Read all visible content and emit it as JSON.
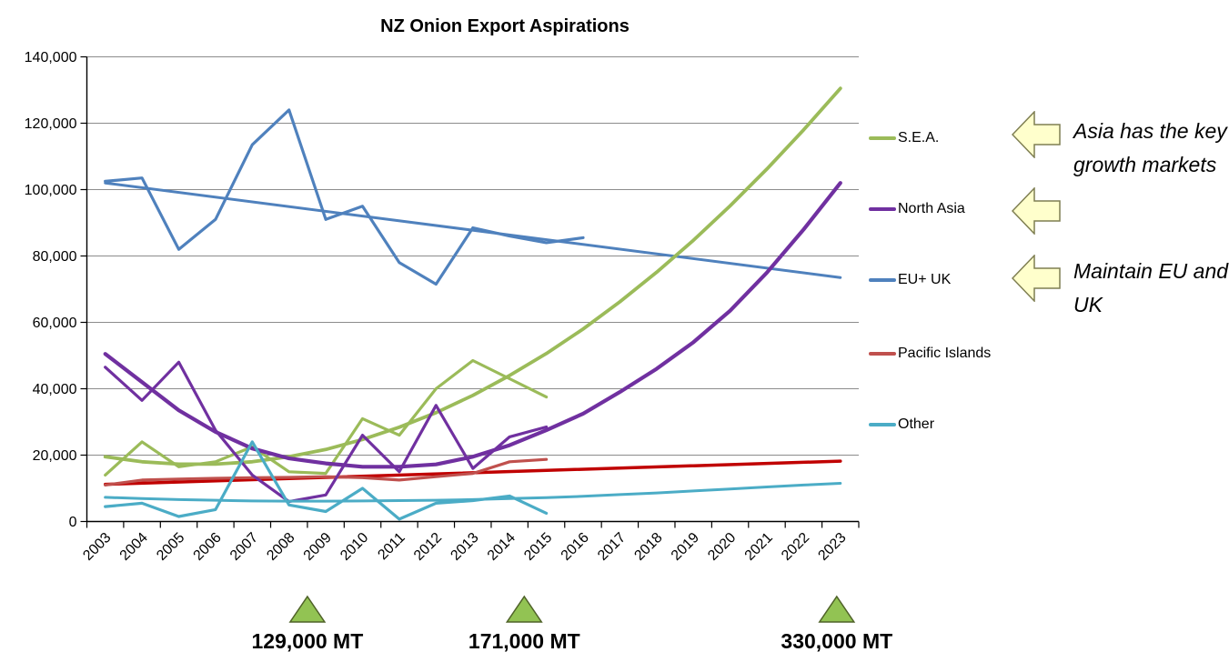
{
  "chart_data": {
    "type": "line",
    "title": "NZ Onion Export Aspirations",
    "xlabel": "",
    "ylabel": "",
    "x_categories": [
      "2003",
      "2004",
      "2005",
      "2006",
      "2007",
      "2008",
      "2009",
      "2010",
      "2011",
      "2012",
      "2013",
      "2014",
      "2015",
      "2016",
      "2017",
      "2018",
      "2019",
      "2020",
      "2021",
      "2022",
      "2023"
    ],
    "ylim": [
      0,
      140000
    ],
    "ytick_values": [
      0,
      20000,
      40000,
      60000,
      80000,
      100000,
      120000,
      140000
    ],
    "ytick_labels": [
      "0",
      "20,000",
      "40,000",
      "60,000",
      "80,000",
      "100,000",
      "120,000",
      "140,000"
    ],
    "grid": true,
    "legend_position": "right",
    "legend": [
      {
        "label": "S.E.A.",
        "color": "#9BBB59"
      },
      {
        "label": "North Asia",
        "color": "#7030A0"
      },
      {
        "label": "EU+ UK",
        "color": "#4F81BD"
      },
      {
        "label": "Pacific Islands",
        "color": "#C0504D"
      },
      {
        "label": "Other",
        "color": "#4BACC6"
      }
    ],
    "series": [
      {
        "name": "EU+ UK trend",
        "role": "trend",
        "color": "#4F81BD",
        "width": 3,
        "x": [
          2003,
          2023
        ],
        "values": [
          102000,
          73500
        ]
      },
      {
        "name": "EU+ UK",
        "role": "data",
        "color": "#4F81BD",
        "width": 3.2,
        "x": [
          2003,
          2004,
          2005,
          2006,
          2007,
          2008,
          2009,
          2010,
          2011,
          2012,
          2013,
          2014,
          2015,
          2016
        ],
        "values": [
          102500,
          103500,
          82000,
          91000,
          113500,
          124000,
          91000,
          95000,
          78000,
          71500,
          88500,
          86000,
          84000,
          85500
        ]
      },
      {
        "name": "Pacific Islands trend",
        "role": "trend",
        "color": "#C00000",
        "width": 3.5,
        "x": [
          2003,
          2023
        ],
        "values": [
          11200,
          18200
        ]
      },
      {
        "name": "Pacific Islands",
        "role": "data",
        "color": "#C0504D",
        "width": 3.2,
        "x": [
          2003,
          2004,
          2005,
          2006,
          2007,
          2008,
          2009,
          2010,
          2011,
          2012,
          2013,
          2014,
          2015
        ],
        "values": [
          11000,
          12500,
          12800,
          13000,
          13200,
          13300,
          13500,
          13200,
          12500,
          13500,
          14500,
          18000,
          18700
        ]
      },
      {
        "name": "S.E.A. trend",
        "role": "trend",
        "color": "#9BBB59",
        "width": 3.8,
        "x": [
          2003,
          2004,
          2005,
          2006,
          2007,
          2008,
          2009,
          2010,
          2011,
          2012,
          2013,
          2014,
          2015,
          2016,
          2017,
          2018,
          2019,
          2020,
          2021,
          2022,
          2023
        ],
        "values": [
          19500,
          18000,
          17300,
          17300,
          18000,
          19500,
          21700,
          24700,
          28400,
          32800,
          38000,
          44000,
          50600,
          58000,
          66200,
          75100,
          84700,
          95100,
          106200,
          118000,
          130500
        ]
      },
      {
        "name": "S.E.A.",
        "role": "data",
        "color": "#9BBB59",
        "width": 3.2,
        "x": [
          2003,
          2004,
          2005,
          2006,
          2007,
          2008,
          2009,
          2010,
          2011,
          2012,
          2013,
          2014,
          2015
        ],
        "values": [
          14000,
          24000,
          16500,
          18000,
          22500,
          15000,
          14500,
          31000,
          26000,
          40000,
          48500,
          43000,
          37500
        ]
      },
      {
        "name": "North Asia trend",
        "role": "trend",
        "color": "#7030A0",
        "width": 4.2,
        "x": [
          2003,
          2004,
          2005,
          2006,
          2007,
          2008,
          2009,
          2010,
          2011,
          2012,
          2013,
          2014,
          2015,
          2016,
          2017,
          2018,
          2019,
          2020,
          2021,
          2022,
          2023
        ],
        "values": [
          50500,
          42000,
          33500,
          27000,
          22000,
          19000,
          17500,
          16500,
          16500,
          17200,
          19500,
          23000,
          27500,
          32500,
          39000,
          46000,
          54000,
          63500,
          75000,
          88000,
          102000
        ]
      },
      {
        "name": "North Asia",
        "role": "data",
        "color": "#7030A0",
        "width": 3.2,
        "x": [
          2003,
          2004,
          2005,
          2006,
          2007,
          2008,
          2009,
          2010,
          2011,
          2012,
          2013,
          2014,
          2015
        ],
        "values": [
          46500,
          36500,
          48000,
          27500,
          14000,
          6000,
          8000,
          26000,
          15000,
          35000,
          16000,
          25500,
          28500
        ]
      },
      {
        "name": "Other trend",
        "role": "trend",
        "color": "#4BACC6",
        "width": 3,
        "x": [
          2003,
          2004,
          2005,
          2006,
          2007,
          2008,
          2009,
          2010,
          2011,
          2012,
          2013,
          2014,
          2015,
          2016,
          2017,
          2018,
          2019,
          2020,
          2021,
          2022,
          2023
        ],
        "values": [
          7300,
          6900,
          6600,
          6400,
          6200,
          6150,
          6150,
          6200,
          6300,
          6400,
          6600,
          6900,
          7200,
          7600,
          8100,
          8600,
          9200,
          9800,
          10400,
          11000,
          11500
        ]
      },
      {
        "name": "Other",
        "role": "data",
        "color": "#4BACC6",
        "width": 3.2,
        "x": [
          2003,
          2004,
          2005,
          2006,
          2007,
          2008,
          2009,
          2010,
          2011,
          2012,
          2013,
          2014,
          2015
        ],
        "values": [
          4500,
          5500,
          1500,
          3600,
          24000,
          5000,
          3000,
          10000,
          700,
          5500,
          6300,
          7700,
          2500
        ]
      }
    ],
    "milestones": [
      {
        "label": "129,000 MT",
        "anchor_year": 2008.5
      },
      {
        "label": "171,000 MT",
        "anchor_year": 2014.4
      },
      {
        "label": "330,000 MT",
        "anchor_year": 2022.9
      }
    ],
    "colors": {
      "grid": "#8C8C8C",
      "axis": "#000000",
      "milestone_fill": "#92C353",
      "milestone_stroke": "#4F6228"
    }
  },
  "annotations": {
    "arrow_fill": "#FFFFCC",
    "arrow_stroke": "#7F7F52",
    "items": [
      {
        "text": "Asia has the key growth markets"
      },
      {
        "text": "Maintain EU and UK"
      }
    ]
  }
}
